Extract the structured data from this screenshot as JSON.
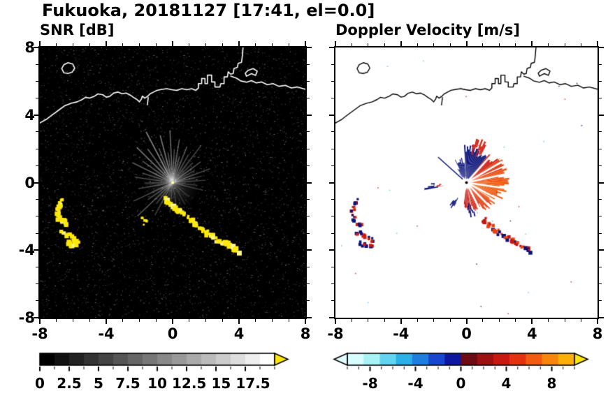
{
  "figure": {
    "title": "Fukuoka, 20181127 [17:41, el=0.0]",
    "site": "Fukuoka",
    "date": "20181127",
    "time": "17:41",
    "elevation": "el=0.0"
  },
  "panels": {
    "snr": {
      "title": "SNR [dB]"
    },
    "velocity": {
      "title": "Doppler Velocity [m/s]"
    }
  },
  "axes": {
    "ylabels": [
      "8",
      "4",
      "0",
      "-4",
      "-8"
    ],
    "xlabels": [
      "-8",
      "-4",
      "0",
      "4",
      "8"
    ],
    "xlim": [
      -8,
      8
    ],
    "ylim": [
      -8,
      8
    ],
    "major_step": 4,
    "minor_step": 1
  },
  "colorbars": {
    "snr": {
      "labels": [
        "0",
        "2.5",
        "5",
        "7.5",
        "10",
        "12.5",
        "15",
        "17.5"
      ]
    },
    "velocity": {
      "labels": [
        "-8",
        "-4",
        "0",
        "4",
        "8"
      ]
    }
  },
  "chart_data": [
    {
      "type": "heatmap",
      "title": "SNR [dB]",
      "units": "dB",
      "xlim": [
        -8,
        8
      ],
      "ylim": [
        -8,
        8
      ],
      "xticks": [
        -8,
        -4,
        0,
        4,
        8
      ],
      "yticks": [
        -8,
        -4,
        0,
        4,
        8
      ],
      "background": "#000000",
      "colorbar": {
        "range": [
          0,
          20
        ],
        "tick_values": [
          0,
          2.5,
          5,
          7.5,
          10,
          12.5,
          15,
          17.5
        ],
        "minor_step": 1.25,
        "colors": [
          "#000000",
          "#111111",
          "#222222",
          "#333333",
          "#444444",
          "#555555",
          "#666666",
          "#777777",
          "#888888",
          "#999999",
          "#aaaaaa",
          "#bbbbbb",
          "#cccccc",
          "#dddddd",
          "#eeeeee",
          "#ffffff"
        ],
        "over_color": "#ffe60a"
      },
      "noise": {
        "count": 7200,
        "seed": 11
      },
      "center_glow": {
        "radius": 1.7,
        "alpha": 0.26
      },
      "rays": [
        [
          118,
          3.4,
          0.5
        ],
        [
          112,
          2.2,
          0.35
        ],
        [
          105,
          2.9,
          0.45
        ],
        [
          99,
          1.8,
          0.3
        ],
        [
          93,
          3.1,
          0.4
        ],
        [
          87,
          2.0,
          0.3
        ],
        [
          81,
          2.6,
          0.35
        ],
        [
          75,
          1.6,
          0.3
        ],
        [
          68,
          2.3,
          0.35
        ],
        [
          60,
          1.9,
          0.3
        ],
        [
          52,
          2.8,
          0.3
        ],
        [
          44,
          1.7,
          0.25
        ],
        [
          36,
          2.1,
          0.3
        ],
        [
          28,
          1.5,
          0.25
        ],
        [
          20,
          2.4,
          0.3
        ],
        [
          12,
          1.8,
          0.25
        ],
        [
          4,
          2.0,
          0.25
        ],
        [
          -6,
          1.5,
          0.2
        ],
        [
          -14,
          1.9,
          0.22
        ],
        [
          127,
          2.5,
          0.4
        ],
        [
          136,
          3.0,
          0.45
        ],
        [
          145,
          2.2,
          0.35
        ],
        [
          154,
          2.7,
          0.4
        ],
        [
          163,
          1.9,
          0.3
        ],
        [
          172,
          2.3,
          0.3
        ],
        [
          181,
          1.7,
          0.25
        ],
        [
          190,
          2.1,
          0.28
        ],
        [
          205,
          2.6,
          0.3
        ],
        [
          214,
          1.8,
          0.25
        ],
        [
          223,
          2.9,
          0.33
        ],
        [
          232,
          1.6,
          0.25
        ],
        [
          241,
          2.2,
          0.28
        ],
        [
          253,
          1.4,
          0.2
        ],
        [
          265,
          1.8,
          0.22
        ],
        [
          280,
          1.2,
          0.18
        ],
        [
          300,
          1.5,
          0.2
        ],
        [
          320,
          1.3,
          0.18
        ]
      ],
      "extra_rays": {
        "count": 70,
        "seed": 5,
        "max_len": 1.6
      },
      "echo_color": "#ffe90a"
    },
    {
      "type": "heatmap",
      "title": "Doppler Velocity [m/s]",
      "units": "m/s",
      "xlim": [
        -8,
        8
      ],
      "ylim": [
        -8,
        8
      ],
      "xticks": [
        -8,
        -4,
        0,
        4,
        8
      ],
      "yticks": [
        -8,
        -4,
        0,
        4,
        8
      ],
      "background": "#ffffff",
      "colorbar": {
        "range": [
          -10,
          10
        ],
        "tick_values": [
          -8,
          -4,
          0,
          4,
          8
        ],
        "minor_step": 1,
        "colors": [
          "#d8fdff",
          "#a8f2f6",
          "#62d4f1",
          "#2cb0e8",
          "#1f7ddf",
          "#1846cf",
          "#0d17a0",
          "#6d0c12",
          "#9e1113",
          "#c91712",
          "#e63110",
          "#f25b10",
          "#f8860c",
          "#fcb007"
        ],
        "under_color": "#e2fdff",
        "over_color": "#ffe60a"
      },
      "wedges": [
        {
          "a0": 52,
          "a1": 96,
          "r0": 0.25,
          "r1": 2.05,
          "c": "#0a1278"
        },
        {
          "a0": 96,
          "a1": 117,
          "r0": 0.3,
          "r1": 1.35,
          "c": "#0a1278"
        },
        {
          "a0": 117,
          "a1": 128,
          "r0": 0.35,
          "r1": 0.85,
          "c": "#0a1278"
        },
        {
          "a0": 60,
          "a1": 82,
          "r0": 2.05,
          "r1": 2.45,
          "c": "#d42316"
        },
        {
          "a0": 36,
          "a1": 52,
          "r0": 0.25,
          "r1": 2.2,
          "c": "#cf1d12"
        },
        {
          "a0": 20,
          "a1": 36,
          "r0": 0.25,
          "r1": 2.35,
          "c": "#e23a12"
        },
        {
          "a0": 2,
          "a1": 20,
          "r0": 0.25,
          "r1": 2.3,
          "c": "#ef5010"
        },
        {
          "a0": -18,
          "a1": 2,
          "r0": 0.25,
          "r1": 2.25,
          "c": "#f05c0e"
        },
        {
          "a0": -38,
          "a1": -18,
          "r0": 0.3,
          "r1": 2.05,
          "c": "#ec5912"
        },
        {
          "a0": -58,
          "a1": -38,
          "r0": 0.3,
          "r1": 1.9,
          "c": "#e34114"
        },
        {
          "a0": -80,
          "a1": -58,
          "r0": 0.35,
          "r1": 1.7,
          "c": "#d32a16"
        },
        {
          "a0": -97,
          "a1": -80,
          "r0": 0.4,
          "r1": 1.5,
          "c": "#c41e18"
        },
        {
          "a0": -88,
          "a1": -70,
          "r0": 1.5,
          "r1": 1.85,
          "c": "#0a1278"
        },
        {
          "a0": 181,
          "a1": 190,
          "r0": 1.85,
          "r1": 2.25,
          "c": "#0a1278"
        },
        {
          "a0": 183,
          "a1": 188,
          "r0": 1.5,
          "r1": 1.85,
          "c": "#cf1d12"
        },
        {
          "a0": 233,
          "a1": 243,
          "r0": 1.25,
          "r1": 1.6,
          "c": "#0a1278"
        }
      ],
      "gap_rays": [
        -8,
        -27,
        -45,
        -63,
        12,
        30,
        47
      ],
      "navy_ray": {
        "angle": 139,
        "r0": 0.3,
        "r1": 2.3,
        "color": "#0a1278"
      },
      "speckles": {
        "count": 26,
        "seed": 9,
        "colors": [
          "#0a1278",
          "#cf1d12",
          "#49c8e8"
        ]
      },
      "chain_start_index": 4
    }
  ],
  "geo": {
    "paths": [
      [
        [
          -8.05,
          3.5
        ],
        [
          -7.6,
          3.75
        ],
        [
          -7.2,
          4.05
        ],
        [
          -6.85,
          4.3
        ],
        [
          -6.5,
          4.55
        ],
        [
          -6.1,
          4.7
        ],
        [
          -5.75,
          4.78
        ],
        [
          -5.45,
          4.92
        ],
        [
          -5.25,
          5.05
        ],
        [
          -5.0,
          5.0
        ],
        [
          -4.7,
          5.12
        ],
        [
          -4.5,
          5.25
        ],
        [
          -4.2,
          5.2
        ],
        [
          -4.0,
          5.06
        ],
        [
          -3.8,
          5.1
        ],
        [
          -3.55,
          5.3
        ],
        [
          -3.3,
          5.36
        ],
        [
          -3.05,
          5.26
        ],
        [
          -2.8,
          5.3
        ],
        [
          -2.55,
          5.18
        ],
        [
          -2.35,
          5.04
        ],
        [
          -2.15,
          4.92
        ],
        [
          -2.0,
          4.78
        ],
        [
          -1.88,
          4.95
        ],
        [
          -1.82,
          5.12
        ],
        [
          -1.68,
          5.0
        ],
        [
          -1.52,
          5.1
        ],
        [
          -1.35,
          5.26
        ],
        [
          -1.15,
          5.36
        ],
        [
          -0.95,
          5.46
        ],
        [
          -0.65,
          5.52
        ],
        [
          -0.35,
          5.56
        ],
        [
          -0.05,
          5.5
        ],
        [
          0.25,
          5.46
        ],
        [
          0.55,
          5.56
        ],
        [
          0.85,
          5.5
        ],
        [
          1.15,
          5.56
        ],
        [
          1.4,
          5.46
        ],
        [
          1.55,
          5.6
        ],
        [
          1.55,
          5.86
        ],
        [
          1.75,
          5.86
        ],
        [
          1.75,
          6.16
        ],
        [
          1.95,
          6.16
        ],
        [
          1.95,
          5.86
        ],
        [
          2.1,
          5.86
        ],
        [
          2.1,
          6.36
        ],
        [
          2.35,
          6.36
        ],
        [
          2.35,
          5.96
        ],
        [
          2.55,
          5.96
        ],
        [
          2.55,
          5.66
        ],
        [
          2.85,
          5.66
        ],
        [
          2.9,
          5.86
        ],
        [
          3.1,
          5.86
        ],
        [
          3.1,
          6.26
        ],
        [
          3.3,
          6.26
        ],
        [
          3.35,
          6.56
        ],
        [
          3.5,
          6.42
        ],
        [
          3.65,
          6.46
        ],
        [
          3.7,
          6.76
        ],
        [
          3.9,
          6.82
        ],
        [
          3.95,
          7.06
        ],
        [
          4.15,
          7.12
        ],
        [
          4.2,
          7.5
        ],
        [
          4.25,
          8.1
        ]
      ],
      [
        [
          3.5,
          6.3
        ],
        [
          3.85,
          6.18
        ],
        [
          4.1,
          6.02
        ],
        [
          4.45,
          5.94
        ],
        [
          4.75,
          6.04
        ],
        [
          5.05,
          5.9
        ],
        [
          5.35,
          5.96
        ],
        [
          5.7,
          5.8
        ],
        [
          6.05,
          5.86
        ],
        [
          6.4,
          5.7
        ],
        [
          6.8,
          5.76
        ],
        [
          7.15,
          5.6
        ],
        [
          7.5,
          5.66
        ],
        [
          8.1,
          5.5
        ]
      ],
      [
        [
          -1.52,
          4.6
        ],
        [
          -1.47,
          5.04
        ]
      ]
    ],
    "closed": [
      [
        [
          -6.55,
          6.5
        ],
        [
          -6.68,
          6.75
        ],
        [
          -6.55,
          6.98
        ],
        [
          -6.3,
          7.1
        ],
        [
          -6.02,
          7.02
        ],
        [
          -5.9,
          6.78
        ],
        [
          -6.05,
          6.54
        ],
        [
          -6.3,
          6.46
        ]
      ],
      [
        [
          4.45,
          6.3
        ],
        [
          4.75,
          6.45
        ],
        [
          5.0,
          6.35
        ],
        [
          5.1,
          6.6
        ],
        [
          4.85,
          6.75
        ],
        [
          4.55,
          6.65
        ],
        [
          4.38,
          6.48
        ]
      ]
    ]
  },
  "echo_chains": {
    "left_arc": [
      [
        -6.6,
        -1.05
      ],
      [
        -6.8,
        -1.25
      ],
      [
        -6.92,
        -1.5
      ],
      [
        -6.97,
        -1.8
      ],
      [
        -6.88,
        -2.1
      ],
      [
        -6.7,
        -2.3
      ],
      [
        -6.5,
        -2.42
      ],
      [
        -6.35,
        -2.55
      ]
    ],
    "left_hook": [
      [
        -6.75,
        -2.85
      ],
      [
        -6.5,
        -3.0
      ],
      [
        -6.22,
        -3.1
      ],
      [
        -5.95,
        -3.3
      ],
      [
        -5.75,
        -3.5
      ],
      [
        -5.9,
        -3.72
      ],
      [
        -6.2,
        -3.68
      ],
      [
        -6.5,
        -3.52
      ]
    ],
    "main_chain": [
      [
        -0.45,
        -0.9
      ],
      [
        -0.2,
        -1.25
      ],
      [
        0.15,
        -1.55
      ],
      [
        0.55,
        -1.85
      ],
      [
        1.0,
        -2.15
      ],
      [
        1.35,
        -2.5
      ],
      [
        1.85,
        -2.85
      ],
      [
        2.35,
        -3.2
      ],
      [
        2.85,
        -3.5
      ],
      [
        3.35,
        -3.72
      ],
      [
        3.75,
        -3.95
      ],
      [
        4.05,
        -4.2
      ]
    ],
    "small_dash": [
      [
        -1.75,
        -2.05
      ],
      [
        -1.65,
        -2.3
      ],
      [
        -1.6,
        -2.5
      ]
    ]
  }
}
